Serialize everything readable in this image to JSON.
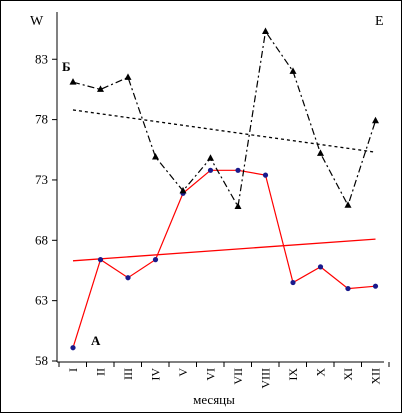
{
  "chart_data": {
    "type": "line",
    "corner_left": "W",
    "corner_right": "E",
    "xlabel": "месяцы",
    "categories": [
      "I",
      "II",
      "III",
      "IV",
      "V",
      "VI",
      "VII",
      "VIII",
      "IX",
      "X",
      "XI",
      "XII"
    ],
    "yticks": [
      58,
      63,
      68,
      73,
      78,
      83
    ],
    "ylim": [
      58,
      86
    ],
    "grid": false,
    "series": [
      {
        "name": "А",
        "style": "solid",
        "marker": "circle",
        "color": "#ff0000",
        "marker_color": "#1a1a8c",
        "values": [
          59.1,
          66.4,
          64.9,
          66.4,
          71.9,
          73.8,
          73.8,
          73.4,
          64.5,
          65.8,
          64.0,
          64.2
        ],
        "trend": [
          66.3,
          68.1
        ]
      },
      {
        "name": "Б",
        "style": "dashdot",
        "marker": "triangle",
        "color": "#000000",
        "marker_color": "#000000",
        "values": [
          81.1,
          80.5,
          81.5,
          74.9,
          72.1,
          74.8,
          70.8,
          85.3,
          82.0,
          75.2,
          70.9,
          77.9
        ],
        "trend": [
          78.8,
          75.3
        ]
      }
    ]
  }
}
